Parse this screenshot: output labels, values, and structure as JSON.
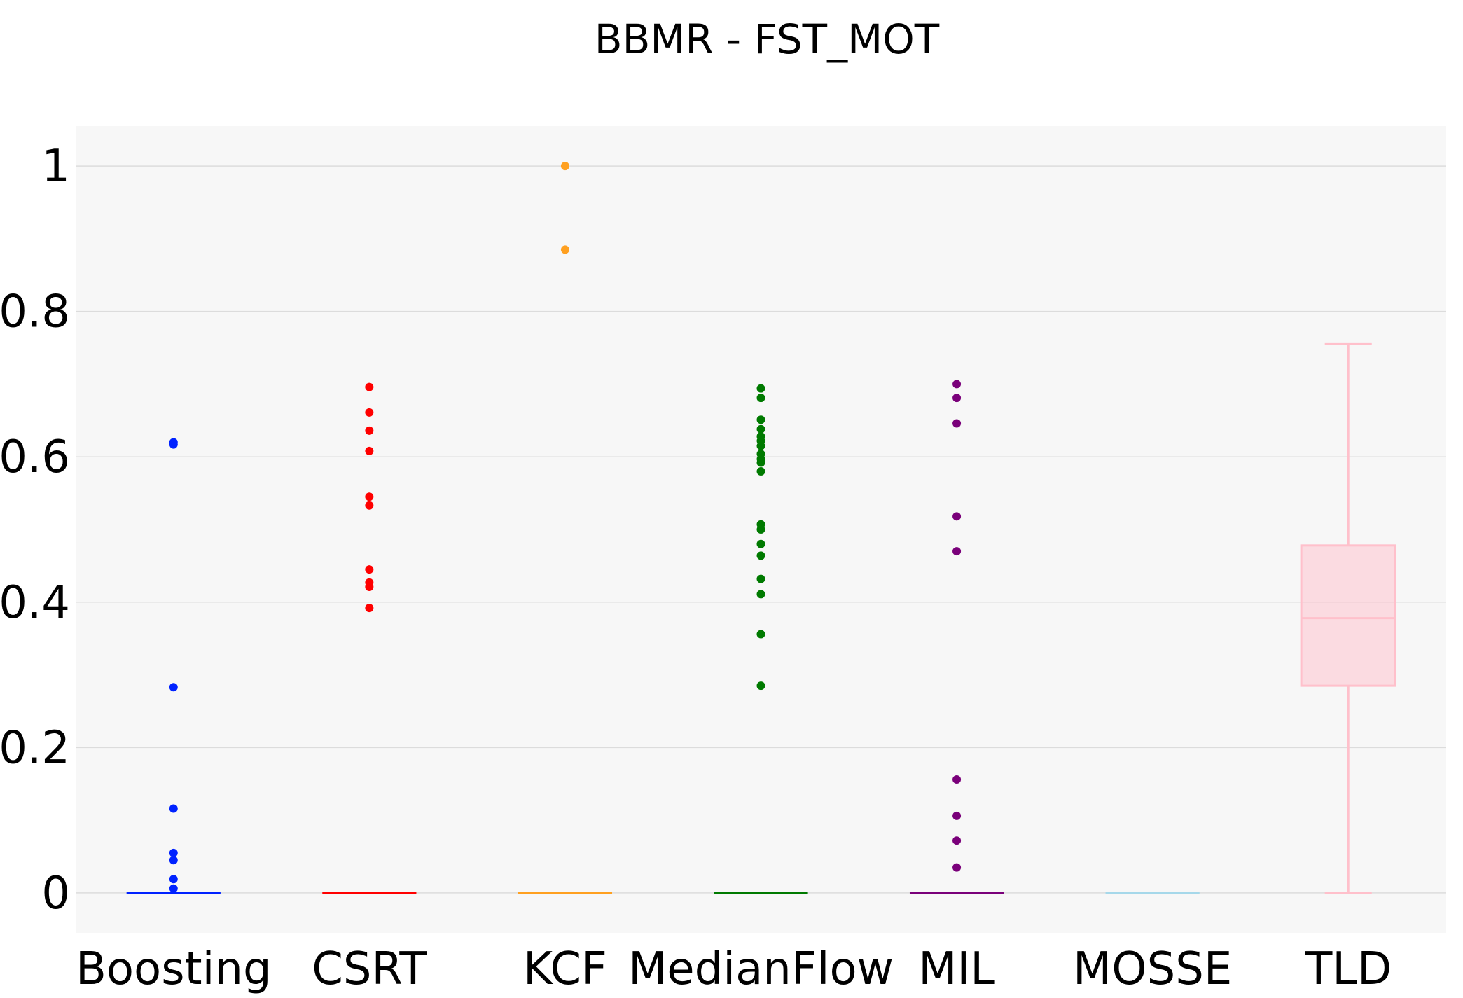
{
  "chart_data": {
    "type": "box",
    "title": "BBMR - FST_MOT",
    "xlabel": "",
    "ylabel": "",
    "ylim": [
      -0.055,
      1.055
    ],
    "yticks": [
      0,
      0.2,
      0.4,
      0.6,
      0.8,
      1
    ],
    "ytick_labels": [
      "0",
      "0.2",
      "0.4",
      "0.6",
      "0.8",
      "1"
    ],
    "grid": true,
    "legend": "none",
    "categories": [
      "Boosting",
      "CSRT",
      "KCF",
      "MedianFlow",
      "MIL",
      "MOSSE",
      "TLD"
    ],
    "series": [
      {
        "category": "Boosting",
        "color": "#0022ff",
        "box": {
          "min": 0,
          "q1": 0,
          "median": 0,
          "q3": 0,
          "max": 0
        },
        "outliers": [
          0.62,
          0.617,
          0.283,
          0.116,
          0.055,
          0.045,
          0.019,
          0.006
        ]
      },
      {
        "category": "CSRT",
        "color": "#ff0000",
        "box": {
          "min": 0,
          "q1": 0,
          "median": 0,
          "q3": 0,
          "max": 0
        },
        "outliers": [
          0.696,
          0.661,
          0.636,
          0.608,
          0.545,
          0.533,
          0.445,
          0.427,
          0.421,
          0.392
        ]
      },
      {
        "category": "KCF",
        "color": "#ffa020",
        "box": {
          "min": 0,
          "q1": 0,
          "median": 0,
          "q3": 0,
          "max": 0
        },
        "outliers": [
          1.0,
          0.885
        ]
      },
      {
        "category": "MedianFlow",
        "color": "#007a00",
        "box": {
          "min": 0,
          "q1": 0,
          "median": 0,
          "q3": 0,
          "max": 0
        },
        "outliers": [
          0.694,
          0.681,
          0.651,
          0.638,
          0.628,
          0.622,
          0.615,
          0.604,
          0.597,
          0.592,
          0.58,
          0.507,
          0.5,
          0.48,
          0.464,
          0.432,
          0.411,
          0.356,
          0.285
        ]
      },
      {
        "category": "MIL",
        "color": "#7a007a",
        "box": {
          "min": 0,
          "q1": 0,
          "median": 0,
          "q3": 0,
          "max": 0
        },
        "outliers": [
          0.7,
          0.681,
          0.646,
          0.518,
          0.47,
          0.156,
          0.106,
          0.072,
          0.035
        ]
      },
      {
        "category": "MOSSE",
        "color": "#a6d8ea",
        "box": {
          "min": 0,
          "q1": 0,
          "median": 0,
          "q3": 0,
          "max": 0
        },
        "outliers": []
      },
      {
        "category": "TLD",
        "color": "#ffc0cb",
        "box": {
          "min": 0,
          "q1": 0.285,
          "median": 0.378,
          "q3": 0.478,
          "max": 0.755
        },
        "outliers": []
      }
    ]
  }
}
